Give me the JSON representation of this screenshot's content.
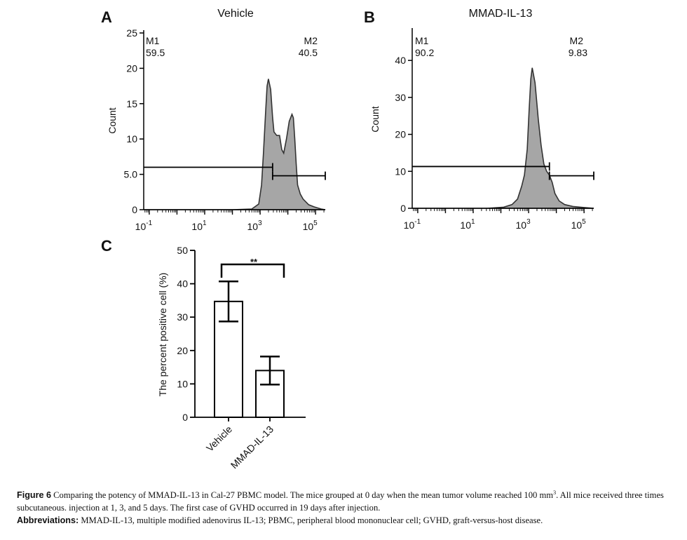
{
  "chart_data": [
    {
      "panel": "A",
      "type": "area",
      "subtype": "flow-cytometry histogram",
      "title": "Vehicle",
      "xlabel": "",
      "ylabel": "Count",
      "xscale": "log10",
      "xlim_log": [
        -1.2,
        5.35
      ],
      "ylim": [
        0,
        25
      ],
      "yticks": [
        0,
        5,
        10,
        15,
        20,
        25
      ],
      "ytick_labels": [
        "0",
        "5.0",
        "10",
        "15",
        "20",
        "25"
      ],
      "xtick_labels": [
        {
          "base": "10",
          "exp": "-1",
          "at": -1
        },
        {
          "base": "10",
          "exp": "1",
          "at": 1
        },
        {
          "base": "10",
          "exp": "3",
          "at": 3
        },
        {
          "base": "10",
          "exp": "5",
          "at": 5
        }
      ],
      "curve_log_x": [
        -1.2,
        2.0,
        2.7,
        2.95,
        3.05,
        3.12,
        3.2,
        3.25,
        3.3,
        3.38,
        3.45,
        3.5,
        3.6,
        3.7,
        3.78,
        3.85,
        3.95,
        4.05,
        4.15,
        4.2,
        4.25,
        4.3,
        4.35,
        4.45,
        4.55,
        4.75,
        4.95,
        5.2,
        5.35
      ],
      "curve_y": [
        0,
        0,
        0.1,
        0.8,
        3.5,
        8.0,
        14.0,
        17.5,
        18.5,
        17.0,
        13.0,
        11.0,
        10.5,
        10.5,
        8.5,
        8.0,
        10.0,
        12.5,
        13.5,
        13.0,
        10.0,
        6.5,
        3.5,
        2.2,
        1.5,
        0.7,
        0.4,
        0.1,
        0
      ],
      "gates": [
        {
          "name": "M1",
          "value": "59.5",
          "from_log": -1.2,
          "to_log": 3.45,
          "y": 6.0
        },
        {
          "name": "M2",
          "value": "40.5",
          "from_log": 3.45,
          "to_log": 5.35,
          "y": 4.8
        }
      ]
    },
    {
      "panel": "B",
      "type": "area",
      "subtype": "flow-cytometry histogram",
      "title": "MMAD-IL-13",
      "xlabel": "",
      "ylabel": "Count",
      "xscale": "log10",
      "xlim_log": [
        -1.2,
        5.35
      ],
      "ylim": [
        0,
        48
      ],
      "yticks": [
        0,
        10,
        20,
        30,
        40
      ],
      "ytick_labels": [
        "0",
        "10",
        "20",
        "30",
        "40"
      ],
      "xtick_labels": [
        {
          "base": "10",
          "exp": "-1",
          "at": -1
        },
        {
          "base": "10",
          "exp": "1",
          "at": 1
        },
        {
          "base": "10",
          "exp": "3",
          "at": 3
        },
        {
          "base": "10",
          "exp": "5",
          "at": 5
        }
      ],
      "curve_log_x": [
        -1.2,
        1.5,
        2.1,
        2.4,
        2.6,
        2.75,
        2.85,
        2.95,
        3.02,
        3.08,
        3.13,
        3.18,
        3.23,
        3.28,
        3.35,
        3.45,
        3.55,
        3.65,
        3.75,
        3.85,
        3.95,
        4.1,
        4.3,
        4.6,
        5.0,
        5.35
      ],
      "curve_y": [
        0,
        0,
        0.3,
        1.0,
        2.5,
        6.0,
        9.0,
        16.0,
        27.0,
        35.0,
        38.0,
        36.0,
        34.0,
        30.0,
        24.0,
        17.0,
        12.0,
        10.0,
        9.0,
        7.0,
        4.0,
        2.0,
        1.0,
        0.5,
        0.2,
        0
      ],
      "gates": [
        {
          "name": "M1",
          "value": "90.2",
          "from_log": -1.2,
          "to_log": 3.75,
          "y": 11.3
        },
        {
          "name": "M2",
          "value": "9.83",
          "from_log": 3.75,
          "to_log": 5.35,
          "y": 8.8
        }
      ]
    },
    {
      "panel": "C",
      "type": "bar",
      "title": "",
      "xlabel": "",
      "ylabel": "The percent positive cell (%)",
      "ylim": [
        0,
        50
      ],
      "yticks": [
        0,
        10,
        20,
        30,
        40,
        50
      ],
      "categories": [
        "Vehicle",
        "MMAD-IL-13"
      ],
      "values": [
        34.7,
        14.0
      ],
      "errors": [
        6.0,
        4.2
      ],
      "significance": {
        "between": [
          0,
          1
        ],
        "label": "**"
      }
    }
  ],
  "caption": {
    "figure_label": "Figure 6",
    "text_before_sup": "Comparing the potency of MMAD-IL-13 in Cal-27 PBMC model. The mice grouped at 0 day when the mean tumor volume reached 100 mm",
    "sup": "3",
    "text_after_sup": ". All mice received three times subcutaneous. injection at 1, 3, and 5 days. The first case of GVHD occurred in 19 days after injection.",
    "abbrev_label": "Abbreviations:",
    "abbrev_text": "MMAD-IL-13, multiple modified adenovirus IL-13; PBMC, peripheral blood mononuclear cell; GVHD, graft-versus-host disease."
  }
}
